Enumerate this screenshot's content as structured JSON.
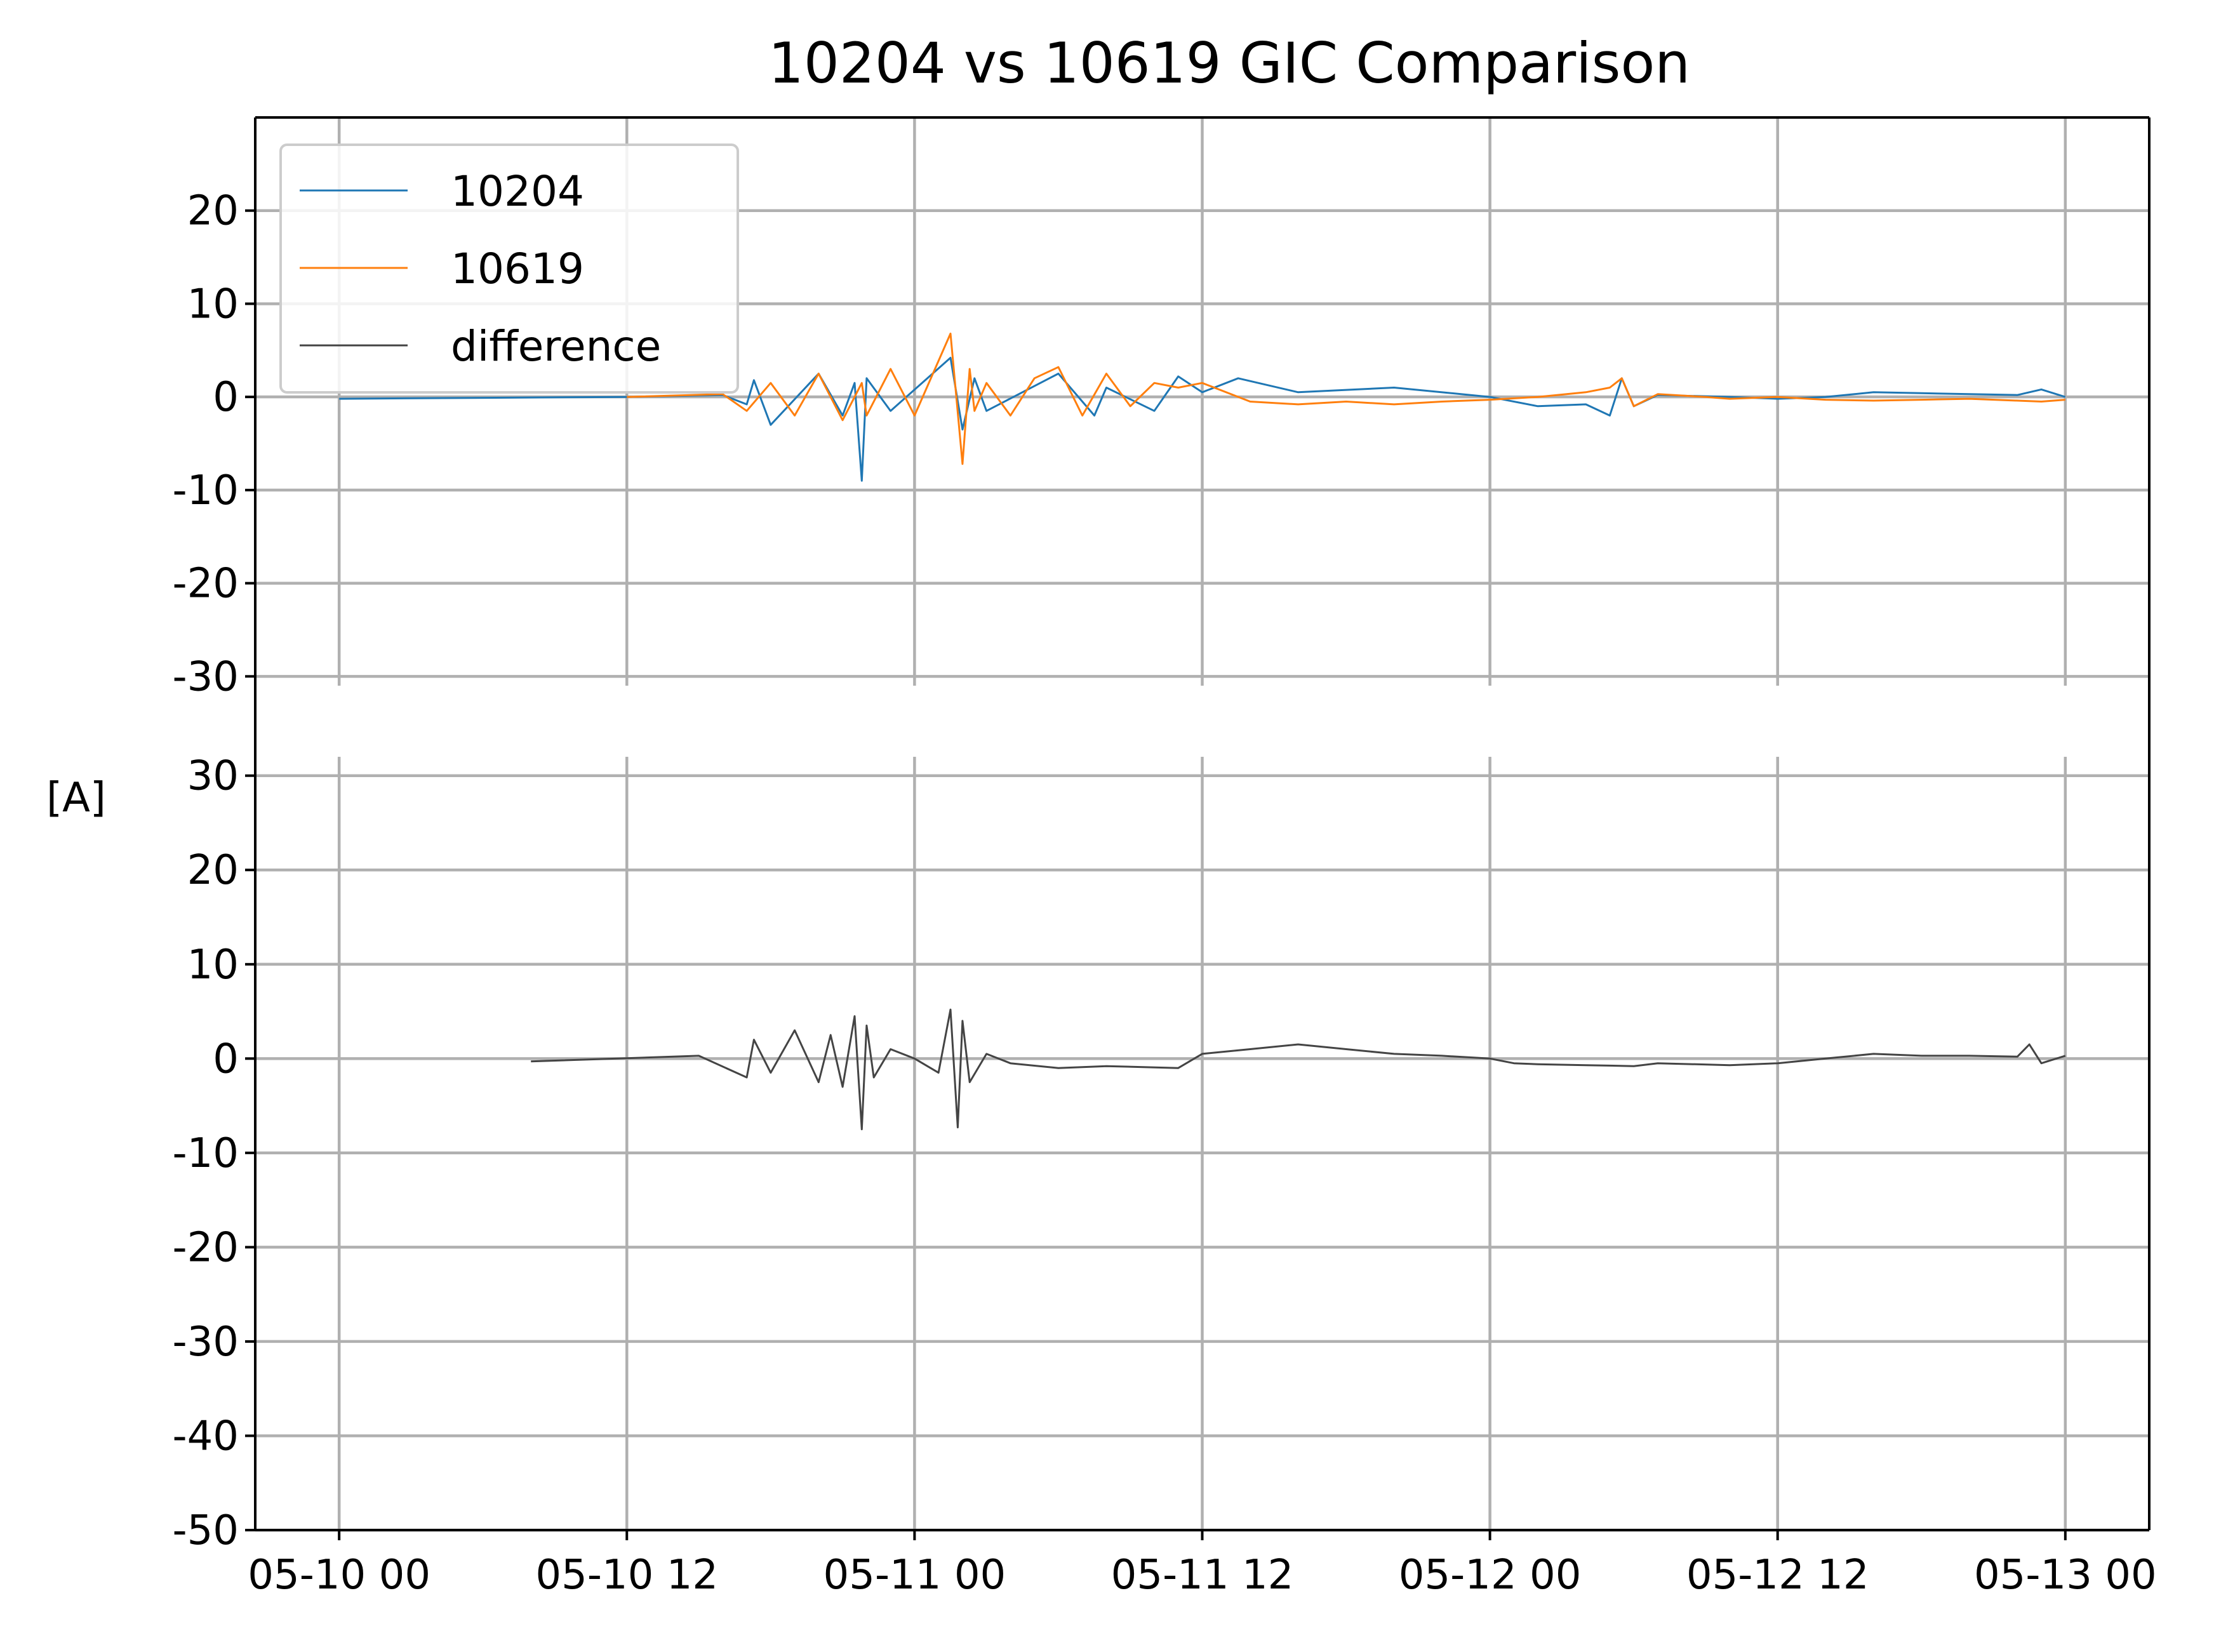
{
  "chart_data": {
    "type": "line",
    "title": "10204 vs 10619 GIC Comparison",
    "ylabel": "[A]",
    "xlabel": "",
    "x_ticks": [
      "05-10 00",
      "05-10 12",
      "05-11 00",
      "05-11 12",
      "05-12 00",
      "05-12 12",
      "05-13 00"
    ],
    "x_range_hours": [
      -3.5,
      75.5
    ],
    "grid": true,
    "legend_position": "upper-left",
    "colors": {
      "10204": "#1f77b4",
      "10619": "#ff7f0e",
      "difference": "#444444"
    },
    "panels": [
      {
        "name": "top",
        "ylim": [
          -31,
          30
        ],
        "y_ticks": [
          20,
          10,
          0,
          -10,
          -20,
          -30
        ],
        "y_tick_labels": [
          "20",
          "10",
          "0",
          "-10",
          "-20",
          "-30"
        ],
        "series": [
          {
            "name": "10204",
            "x_hours": [
              0,
              6,
              12,
              16,
              17,
              17.3,
              18,
              20,
              21,
              21.5,
              21.8,
              22,
              23,
              25.5,
              26,
              26.5,
              27,
              30,
              31.5,
              32,
              34,
              35,
              36,
              37.5,
              40,
              44,
              48,
              50,
              52,
              53,
              53.5,
              54,
              55,
              58,
              60,
              62,
              64,
              66,
              68,
              70,
              71,
              72
            ],
            "values": [
              -0.2,
              -0.1,
              0.0,
              0.2,
              -0.8,
              1.8,
              -3.0,
              2.5,
              -2.0,
              1.5,
              -9.0,
              2.0,
              -1.5,
              4.2,
              -3.5,
              2.0,
              -1.5,
              2.5,
              -2.0,
              1.0,
              -1.5,
              2.2,
              0.5,
              2.0,
              0.5,
              1.0,
              0.0,
              -1.0,
              -0.8,
              -2.0,
              2.0,
              -1.0,
              0.2,
              0.0,
              -0.2,
              0.0,
              0.5,
              0.4,
              0.3,
              0.2,
              0.8,
              0.0
            ]
          },
          {
            "name": "10619",
            "x_hours": [
              12,
              16,
              17,
              18,
              19,
              20,
              21,
              21.8,
              22,
              23,
              24,
              25.5,
              26,
              26.3,
              26.5,
              27,
              28,
              29,
              30,
              31,
              32,
              33,
              34,
              35,
              36,
              38,
              40,
              42,
              44,
              46,
              48,
              50,
              52,
              53,
              53.5,
              54,
              55,
              57,
              58,
              60,
              62,
              64,
              66,
              68,
              70,
              71,
              72
            ],
            "values": [
              0.0,
              0.3,
              -1.5,
              1.5,
              -2.0,
              2.5,
              -2.5,
              1.5,
              -2.0,
              3.0,
              -2.0,
              6.8,
              -7.2,
              3.0,
              -1.5,
              1.5,
              -2.0,
              2.0,
              3.2,
              -2.0,
              2.5,
              -1.0,
              1.5,
              1.0,
              1.5,
              -0.5,
              -0.8,
              -0.5,
              -0.8,
              -0.5,
              -0.3,
              0.0,
              0.5,
              1.0,
              2.0,
              -1.0,
              0.3,
              0.0,
              -0.2,
              0.0,
              -0.3,
              -0.4,
              -0.3,
              -0.2,
              -0.4,
              -0.5,
              -0.3
            ]
          }
        ]
      },
      {
        "name": "bottom",
        "ylim": [
          -50,
          32
        ],
        "y_ticks": [
          30,
          20,
          10,
          0,
          -10,
          -20,
          -30,
          -40,
          -50
        ],
        "y_tick_labels": [
          "30",
          "20",
          "10",
          "0",
          "-10",
          "-20",
          "-30",
          "-40",
          "-50"
        ],
        "series": [
          {
            "name": "difference",
            "x_hours": [
              8,
              15,
              17,
              17.3,
              18,
              19,
              20,
              20.5,
              21,
              21.5,
              21.8,
              22,
              22.3,
              23,
              24,
              25,
              25.5,
              25.8,
              26,
              26.3,
              27,
              28,
              30,
              32,
              35,
              36,
              38,
              40,
              42,
              44,
              46,
              48,
              49,
              50,
              52,
              54,
              55,
              58,
              60,
              62,
              64,
              66,
              68,
              70,
              70.5,
              71,
              72
            ],
            "values": [
              -0.3,
              0.3,
              -2.0,
              2.0,
              -1.5,
              3.0,
              -2.5,
              2.5,
              -3.0,
              4.5,
              -7.5,
              3.5,
              -2.0,
              1.0,
              0.0,
              -1.5,
              5.2,
              -7.3,
              4.0,
              -2.5,
              0.5,
              -0.5,
              -1.0,
              -0.8,
              -1.0,
              0.5,
              1.0,
              1.5,
              1.0,
              0.5,
              0.3,
              0.0,
              -0.5,
              -0.6,
              -0.7,
              -0.8,
              -0.5,
              -0.7,
              -0.5,
              0.0,
              0.5,
              0.3,
              0.3,
              0.2,
              1.5,
              -0.5,
              0.3
            ]
          }
        ]
      }
    ],
    "legend": [
      {
        "label": "10204",
        "color": "#1f77b4"
      },
      {
        "label": "10619",
        "color": "#ff7f0e"
      },
      {
        "label": "difference",
        "color": "#444444"
      }
    ]
  }
}
